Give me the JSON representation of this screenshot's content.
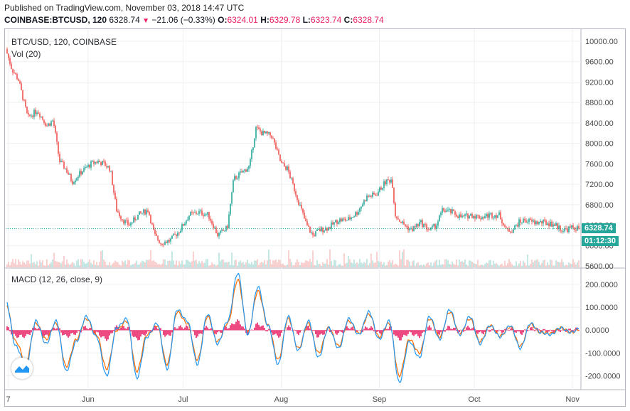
{
  "header": {
    "published": "Published on TradingView.com, November 03, 2018 14:47 UTC",
    "symbol": "COINBASE:BTCUSD, 120",
    "last": "6328.74",
    "arrow": "▼",
    "change": "−21.06 (−0.33%)",
    "o_label": "O:",
    "o_val": "6324.01",
    "h_label": "H:",
    "h_val": "6329.78",
    "l_label": "L:",
    "l_val": "6323.74",
    "c_label": "C:",
    "c_val": "6328.74"
  },
  "legend": {
    "main": "BTC/USD, 120, COINBASE",
    "vol": "Vol (20)",
    "macd": "MACD (12, 26, close, 9)"
  },
  "tags": {
    "price": "6328.74",
    "countdown": "01:12:30"
  },
  "colors": {
    "up": "#26a69a",
    "down": "#ef5350",
    "macd": "#2196f3",
    "signal": "#ff6d00",
    "hist": "#e91e63",
    "tag": "#26a69a",
    "priceline": "#26a69a"
  },
  "icons": {
    "logo": "tradingview-logo-icon"
  },
  "chart_data": [
    {
      "type": "candlestick",
      "title": "BTC/USD, 120, COINBASE",
      "ylim": [
        5600,
        10000
      ],
      "y_ticks": [
        "10000.00",
        "9600.00",
        "9200.00",
        "8800.00",
        "8400.00",
        "8000.00",
        "7600.00",
        "7200.00",
        "6800.00",
        "6400.00",
        "6000.00",
        "5600.00"
      ],
      "x_ticks": [
        "7",
        "Jun",
        "Jul",
        "Aug",
        "Sep",
        "Oct",
        "Nov"
      ],
      "close_path": [
        [
          "May 7",
          9650
        ],
        [
          "May 8",
          9450
        ],
        [
          "May 10",
          9250
        ],
        [
          "May 13",
          8500
        ],
        [
          "May 16",
          8650
        ],
        [
          "May 19",
          8350
        ],
        [
          "May 21",
          8450
        ],
        [
          "May 23",
          7650
        ],
        [
          "May 25",
          7500
        ],
        [
          "May 27",
          7250
        ],
        [
          "May 30",
          7450
        ],
        [
          "Jun 2",
          7600
        ],
        [
          "Jun 4",
          7650
        ],
        [
          "Jun 6",
          7600
        ],
        [
          "Jun 8",
          7500
        ],
        [
          "Jun 10",
          6700
        ],
        [
          "Jun 12",
          6500
        ],
        [
          "Jun 14",
          6400
        ],
        [
          "Jun 17",
          6600
        ],
        [
          "Jun 20",
          6700
        ],
        [
          "Jun 22",
          6200
        ],
        [
          "Jun 24",
          6050
        ],
        [
          "Jun 27",
          6100
        ],
        [
          "Jun 30",
          6300
        ],
        [
          "Jul 3",
          6600
        ],
        [
          "Jul 6",
          6650
        ],
        [
          "Jul 9",
          6600
        ],
        [
          "Jul 12",
          6200
        ],
        [
          "Jul 15",
          6350
        ],
        [
          "Jul 17",
          7300
        ],
        [
          "Jul 20",
          7450
        ],
        [
          "Jul 22",
          7550
        ],
        [
          "Jul 24",
          8300
        ],
        [
          "Jul 26",
          8200
        ],
        [
          "Jul 29",
          8150
        ],
        [
          "Aug 1",
          7600
        ],
        [
          "Aug 3",
          7500
        ],
        [
          "Aug 6",
          6950
        ],
        [
          "Aug 9",
          6400
        ],
        [
          "Aug 11",
          6200
        ],
        [
          "Aug 13",
          6300
        ],
        [
          "Aug 16",
          6350
        ],
        [
          "Aug 19",
          6500
        ],
        [
          "Aug 22",
          6500
        ],
        [
          "Aug 25",
          6650
        ],
        [
          "Aug 28",
          6950
        ],
        [
          "Aug 31",
          7000
        ],
        [
          "Sep 3",
          7250
        ],
        [
          "Sep 5",
          7300
        ],
        [
          "Sep 6",
          6600
        ],
        [
          "Sep 8",
          6450
        ],
        [
          "Sep 11",
          6300
        ],
        [
          "Sep 14",
          6450
        ],
        [
          "Sep 17",
          6300
        ],
        [
          "Sep 19",
          6400
        ],
        [
          "Sep 21",
          6700
        ],
        [
          "Sep 24",
          6650
        ],
        [
          "Sep 27",
          6550
        ],
        [
          "Sep 30",
          6600
        ],
        [
          "Oct 3",
          6550
        ],
        [
          "Oct 6",
          6600
        ],
        [
          "Oct 9",
          6600
        ],
        [
          "Oct 11",
          6300
        ],
        [
          "Oct 13",
          6300
        ],
        [
          "Oct 15",
          6450
        ],
        [
          "Oct 17",
          6500
        ],
        [
          "Oct 20",
          6450
        ],
        [
          "Oct 23",
          6450
        ],
        [
          "Oct 26",
          6420
        ],
        [
          "Oct 29",
          6300
        ],
        [
          "Nov 1",
          6350
        ],
        [
          "Nov 3",
          6329
        ]
      ],
      "last_price": 6328.74
    },
    {
      "type": "line",
      "title": "MACD (12, 26, close, 9)",
      "ylim": [
        -230,
        250
      ],
      "y_ticks": [
        "200.0000",
        "100.0000",
        "0.0000",
        "-100.0000",
        "-200.0000"
      ],
      "series": [
        {
          "name": "MACD",
          "values": [
            130,
            -70,
            -160,
            40,
            -60,
            40,
            -180,
            -50,
            60,
            -30,
            -200,
            10,
            50,
            -210,
            -30,
            30,
            -170,
            90,
            40,
            -150,
            70,
            -60,
            40,
            250,
            -20,
            190,
            20,
            -150,
            60,
            -90,
            40,
            -120,
            10,
            -80,
            50,
            -20,
            80,
            -40,
            40,
            -230,
            -50,
            -120,
            60,
            -40,
            90,
            -20,
            60,
            -60,
            20,
            -30,
            20,
            -80,
            30,
            -10,
            -20,
            10,
            -10,
            10
          ]
        },
        {
          "name": "Signal",
          "values": [
            120,
            -50,
            -140,
            30,
            -40,
            30,
            -160,
            -40,
            50,
            -20,
            -170,
            0,
            40,
            -180,
            -20,
            20,
            -150,
            80,
            30,
            -130,
            60,
            -50,
            30,
            220,
            -10,
            170,
            20,
            -130,
            50,
            -80,
            30,
            -100,
            10,
            -70,
            40,
            -15,
            70,
            -30,
            30,
            -200,
            -40,
            -100,
            50,
            -30,
            80,
            -15,
            50,
            -50,
            20,
            -25,
            15,
            -70,
            25,
            -10,
            -15,
            10,
            -10,
            5
          ]
        }
      ]
    }
  ]
}
